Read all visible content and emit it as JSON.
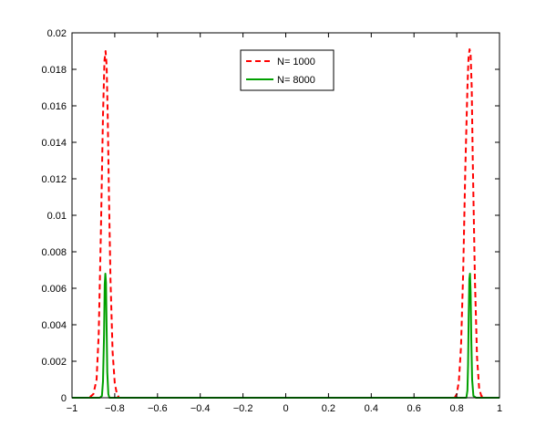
{
  "chart_data": {
    "type": "line",
    "title": "",
    "xlabel": "",
    "ylabel": "",
    "xlim": [
      -1,
      1
    ],
    "ylim": [
      0,
      0.02
    ],
    "grid": false,
    "legend_position": "top-center",
    "xticks": [
      "−1",
      "−0.8",
      "−0.6",
      "−0.4",
      "−0.2",
      "0",
      "0.2",
      "0.4",
      "0.6",
      "0.8",
      "1"
    ],
    "yticks": [
      "0",
      "0.002",
      "0.004",
      "0.006",
      "0.008",
      "0.01",
      "0.012",
      "0.014",
      "0.016",
      "0.018",
      "0.02"
    ],
    "series": [
      {
        "name": "N= 1000",
        "color": "#ff0000",
        "style": "dashed",
        "x": [
          -1.0,
          -0.92,
          -0.9,
          -0.885,
          -0.875,
          -0.865,
          -0.855,
          -0.848,
          -0.843,
          -0.838,
          -0.833,
          -0.827,
          -0.82,
          -0.81,
          -0.8,
          -0.79,
          -0.78,
          -0.76,
          0.76,
          0.79,
          0.8,
          0.81,
          0.82,
          0.83,
          0.84,
          0.85,
          0.855,
          0.86,
          0.865,
          0.87,
          0.875,
          0.885,
          0.895,
          0.905,
          0.915,
          0.93,
          1.0
        ],
        "y": [
          0.0,
          0.0,
          0.0002,
          0.001,
          0.0035,
          0.009,
          0.0155,
          0.0185,
          0.019,
          0.0182,
          0.0155,
          0.011,
          0.0065,
          0.0025,
          0.0008,
          0.0002,
          0.0,
          0.0,
          0.0,
          0.0,
          0.0002,
          0.0009,
          0.0028,
          0.0068,
          0.0125,
          0.017,
          0.0186,
          0.0191,
          0.0188,
          0.017,
          0.013,
          0.0065,
          0.0022,
          0.0005,
          0.0001,
          0.0,
          0.0
        ]
      },
      {
        "name": "N= 8000",
        "color": "#00a000",
        "style": "solid",
        "x": [
          -1.0,
          -0.87,
          -0.86,
          -0.855,
          -0.85,
          -0.847,
          -0.844,
          -0.841,
          -0.838,
          -0.835,
          -0.83,
          -0.825,
          -0.815,
          0.83,
          0.845,
          0.85,
          0.853,
          0.856,
          0.859,
          0.862,
          0.865,
          0.868,
          0.872,
          0.878,
          0.89,
          1.0
        ],
        "y": [
          0.0,
          0.0,
          0.0001,
          0.0009,
          0.0035,
          0.0062,
          0.0068,
          0.0063,
          0.0038,
          0.0014,
          0.0002,
          0.0,
          0.0,
          0.0,
          0.0,
          0.0004,
          0.0018,
          0.0045,
          0.0065,
          0.0068,
          0.0058,
          0.0032,
          0.001,
          0.0001,
          0.0,
          0.0
        ]
      }
    ]
  }
}
